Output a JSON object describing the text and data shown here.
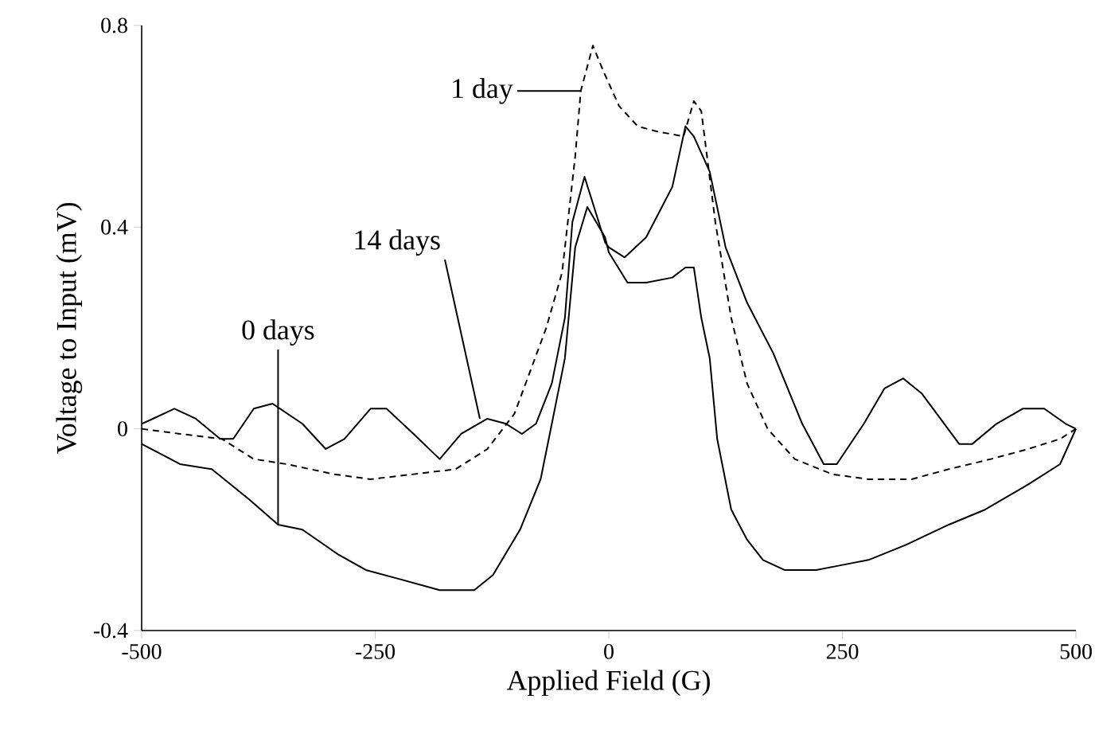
{
  "chart_data": {
    "type": "line",
    "xlabel": "Applied Field (G)",
    "ylabel": "Voltage to Input (mV)",
    "xlim": [
      -500,
      500
    ],
    "ylim": [
      -0.4,
      0.8
    ],
    "xticks": [
      -500,
      -250,
      0,
      250,
      500
    ],
    "yticks": [
      -0.4,
      0,
      0.4,
      0.8
    ],
    "series": [
      {
        "color": "#000000",
        "line_style": "solid",
        "x": [
          -500,
          -459,
          -425,
          -385,
          -354,
          -328,
          -289,
          -260,
          -220,
          -181,
          -144,
          -124,
          -95,
          -73,
          -61,
          -47,
          -36,
          -23,
          -4,
          0,
          20,
          40,
          68,
          82,
          91,
          99,
          108,
          116,
          131,
          148,
          165,
          188,
          222,
          250,
          278,
          318,
          364,
          403,
          449,
          483,
          500
        ],
        "values": [
          -0.03,
          -0.07,
          -0.08,
          -0.14,
          -0.19,
          -0.2,
          -0.25,
          -0.28,
          -0.3,
          -0.32,
          -0.32,
          -0.29,
          -0.2,
          -0.1,
          0.01,
          0.14,
          0.36,
          0.44,
          0.38,
          0.35,
          0.29,
          0.29,
          0.3,
          0.32,
          0.32,
          0.22,
          0.14,
          -0.02,
          -0.16,
          -0.22,
          -0.26,
          -0.28,
          -0.28,
          -0.27,
          -0.26,
          -0.23,
          -0.19,
          -0.16,
          -0.11,
          -0.07,
          0
        ]
      },
      {
        "color": "#000000",
        "line_style": "solid",
        "x": [
          -500,
          -488,
          -465,
          -442,
          -416,
          -402,
          -380,
          -360,
          -328,
          -303,
          -283,
          -255,
          -238,
          -209,
          -181,
          -158,
          -130,
          -110,
          -93,
          -78,
          -61,
          -47,
          -39,
          -26,
          -4,
          0,
          17,
          40,
          68,
          82,
          91,
          108,
          125,
          148,
          176,
          207,
          230,
          244,
          273,
          295,
          315,
          335,
          375,
          389,
          415,
          443,
          466,
          489,
          500
        ],
        "values": [
          0.01,
          0.02,
          0.04,
          0.02,
          -0.02,
          -0.02,
          0.04,
          0.05,
          0.01,
          -0.04,
          -0.02,
          0.04,
          0.04,
          -0.01,
          -0.06,
          -0.01,
          0.02,
          0.01,
          -0.01,
          0.01,
          0.09,
          0.22,
          0.41,
          0.5,
          0.37,
          0.36,
          0.34,
          0.38,
          0.48,
          0.6,
          0.58,
          0.51,
          0.36,
          0.25,
          0.15,
          0.01,
          -0.07,
          -0.07,
          0.01,
          0.08,
          0.1,
          0.07,
          -0.03,
          -0.03,
          0.01,
          0.04,
          0.04,
          0.01,
          0
        ]
      },
      {
        "color": "#000000",
        "line_style": "dashed",
        "x": [
          -500,
          -459,
          -414,
          -380,
          -345,
          -294,
          -255,
          -209,
          -164,
          -130,
          -101,
          -67,
          -50,
          -36,
          -30,
          -17,
          -6,
          11,
          31,
          51,
          80,
          91,
          99,
          114,
          131,
          148,
          170,
          199,
          239,
          278,
          324,
          364,
          409,
          449,
          483,
          500
        ],
        "values": [
          0,
          -0.01,
          -0.02,
          -0.06,
          -0.07,
          -0.09,
          -0.1,
          -0.09,
          -0.08,
          -0.04,
          0.03,
          0.2,
          0.31,
          0.54,
          0.67,
          0.76,
          0.71,
          0.64,
          0.6,
          0.59,
          0.58,
          0.65,
          0.63,
          0.41,
          0.22,
          0.09,
          0,
          -0.06,
          -0.09,
          -0.1,
          -0.1,
          -0.08,
          -0.06,
          -0.04,
          -0.02,
          0
        ]
      }
    ],
    "annotations": [
      {
        "text": "0 days",
        "x": -354,
        "y": -0.19
      },
      {
        "text": "14 days",
        "x": -138,
        "y": 0.02
      },
      {
        "text": "1 day",
        "x": -30,
        "y": 0.67
      }
    ]
  }
}
